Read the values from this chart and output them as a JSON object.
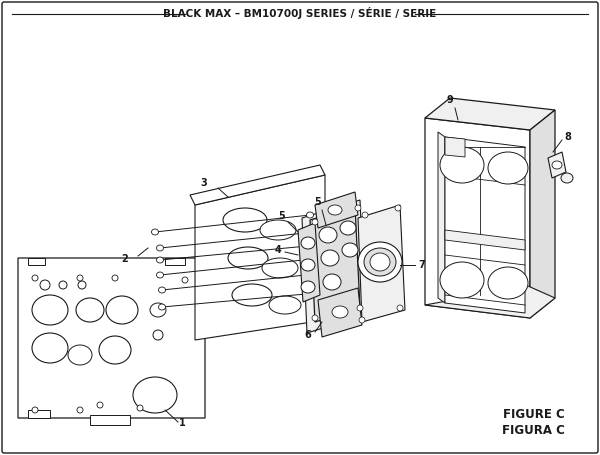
{
  "title": "BLACK MAX – BM10700J SERIES / SÉRIE / SERIE",
  "figure_label": "FIGURE C",
  "figura_label": "FIGURA C",
  "bg_color": "#ffffff",
  "line_color": "#1a1a1a",
  "fill_white": "#ffffff",
  "fill_light": "#f0f0f0",
  "fill_mid": "#e0e0e0",
  "fill_dark": "#cccccc",
  "title_fontsize": 7.5,
  "label_fontsize": 7.0,
  "figure_label_fontsize": 8.5
}
